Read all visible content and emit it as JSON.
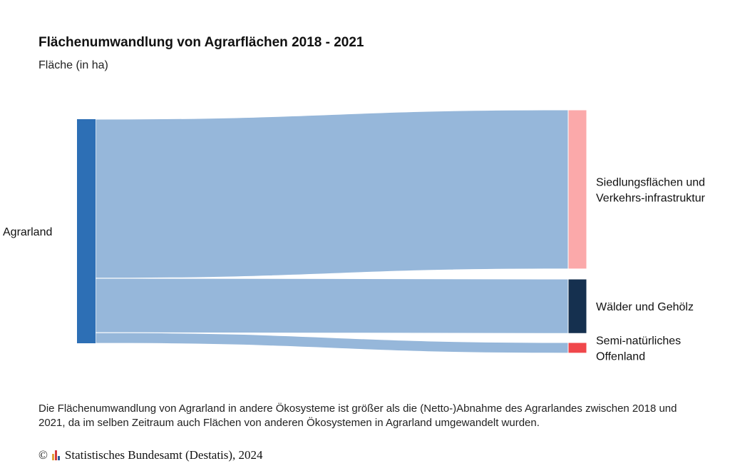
{
  "title": "Flächenumwandlung von Agrarflächen 2018 - 2021",
  "subtitle": "Fläche (in ha)",
  "chart_data": {
    "type": "sankey",
    "nodes": [
      {
        "id": "agrar",
        "label": "Agrarland",
        "color": "#2d6fb5",
        "side": "left"
      },
      {
        "id": "siedlung",
        "label_lines": [
          "Siedlungsflächen und",
          "Verkehrs-infrastruktur"
        ],
        "color": "#fba9aa",
        "side": "right"
      },
      {
        "id": "wald",
        "label_lines": [
          "Wälder und Gehölz"
        ],
        "color": "#15304f",
        "side": "right"
      },
      {
        "id": "offen",
        "label_lines": [
          "Semi-natürliches",
          "Offenland"
        ],
        "color": "#f0474b",
        "side": "right"
      }
    ],
    "links": [
      {
        "source": "agrar",
        "target": "siedlung",
        "value": 225
      },
      {
        "source": "agrar",
        "target": "wald",
        "value": 77
      },
      {
        "source": "agrar",
        "target": "offen",
        "value": 15
      }
    ],
    "link_color": "#96b7da"
  },
  "note": "Die Flächenumwandlung von Agrarland in andere Ökosysteme ist größer als die (Netto-)Abnahme des Agrarlandes zwischen 2018 und 2021, da im selben Zeitraum auch Flächen von anderen Ökosystemen in Agrarland umgewandelt wurden.",
  "source": {
    "copyright": "©",
    "text": "Statistisches Bundesamt (Destatis), 2024",
    "logo_colors": [
      "#e3a23a",
      "#d23b3b",
      "#2d5a9a"
    ]
  }
}
